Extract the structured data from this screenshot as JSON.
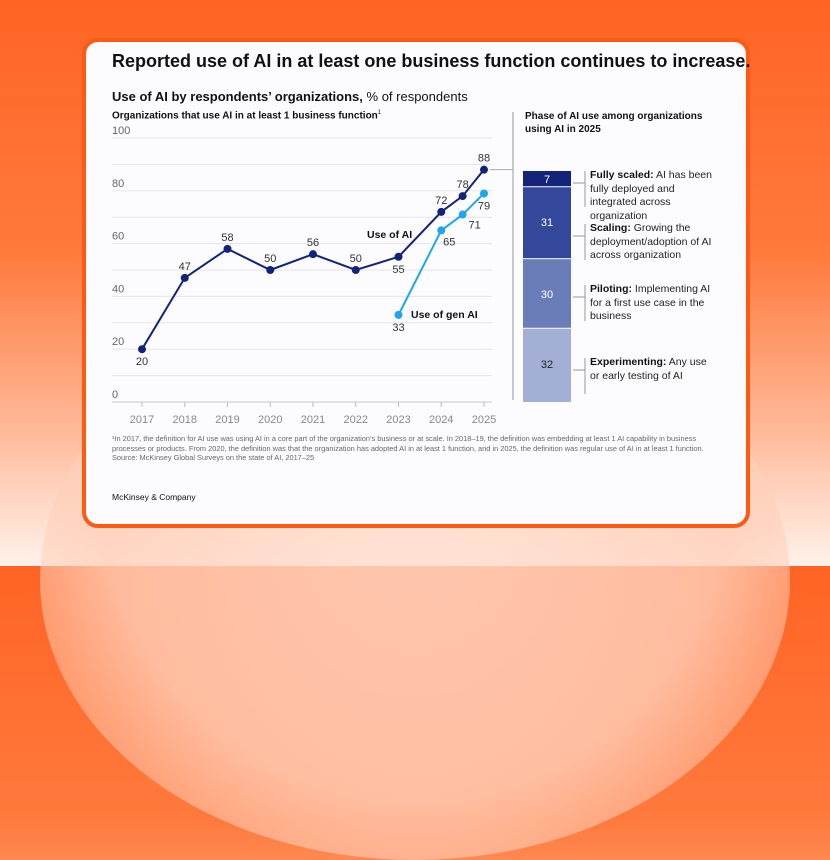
{
  "title": "Reported use of AI in at least one business function continues to increase.",
  "subtitle": {
    "bold": "Use of AI by respondents’ organizations,",
    "rest": " % of respondents"
  },
  "footnote": "¹In 2017, the definition for AI use was using AI in a core part of the organization’s business or at scale. In 2018–19, the definition was embedding at least 1 AI capability in business processes or products. From 2020, the definition was that the organization has adopted AI in at least 1 function, and in 2025, the definition was regular use of AI in at least 1 function.",
  "source": "Source: McKinsey Global Surveys on the state of AI, 2017–25",
  "brand": "McKinsey & Company",
  "colors": {
    "use_of_ai": "#14237a",
    "use_of_gen_ai": "#1fa7ec",
    "accent_border": "#ff5a14"
  },
  "chart_data": [
    {
      "type": "line",
      "title": "Organizations that use AI in at least 1 business function",
      "title_footnote_mark": "1",
      "ylim": [
        0,
        100
      ],
      "yticks": [
        0,
        20,
        40,
        60,
        80,
        100
      ],
      "xticks": [
        "2017",
        "2018",
        "2019",
        "2020",
        "2021",
        "2022",
        "2023",
        "2024",
        "2025"
      ],
      "grid": true,
      "series": [
        {
          "name": "Use of AI",
          "x": [
            2017,
            2018,
            2019,
            2020,
            2021,
            2022,
            2023,
            2024,
            2024.5,
            2025
          ],
          "y": [
            20,
            47,
            58,
            50,
            56,
            50,
            55,
            72,
            78,
            88
          ]
        },
        {
          "name": "Use of gen AI",
          "x": [
            2023,
            2024,
            2024.5,
            2025
          ],
          "y": [
            33,
            65,
            71,
            79
          ]
        }
      ]
    },
    {
      "type": "bar",
      "stacked": true,
      "title": "Phase of AI use among organizations using AI in 2025",
      "segments": [
        {
          "label": "Fully scaled:",
          "desc": " AI has been fully deployed and integrated across organization",
          "value": 7,
          "color": "#14237a"
        },
        {
          "label": "Scaling:",
          "desc": " Growing the deployment/adoption of AI across organization",
          "value": 31,
          "color": "#33489a"
        },
        {
          "label": "Piloting:",
          "desc": " Implementing AI for a first use case in the business",
          "value": 30,
          "color": "#6a7db8"
        },
        {
          "label": "Experimenting:",
          "desc": " Any use or early testing of AI",
          "value": 32,
          "color": "#a3afd5"
        }
      ]
    }
  ]
}
